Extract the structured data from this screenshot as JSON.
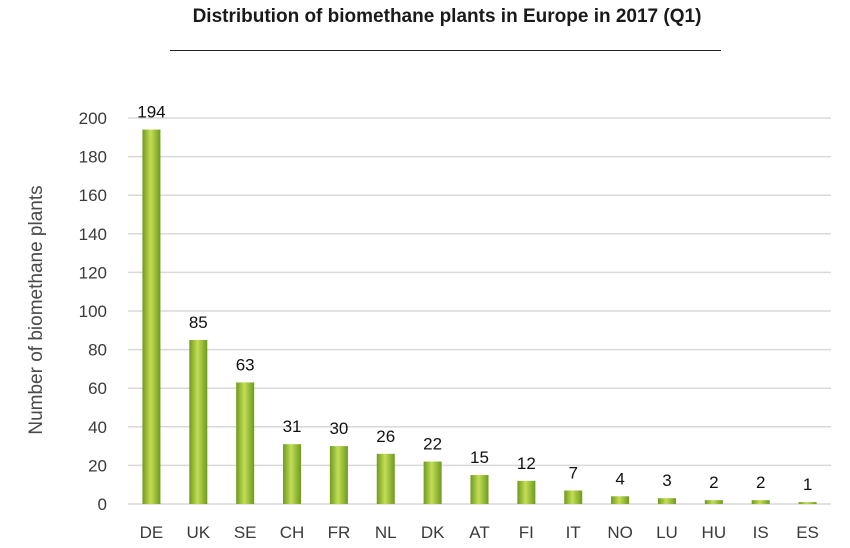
{
  "chart_data": {
    "type": "bar",
    "title": "Distribution of biomethane plants in Europe in 2017 (Q1)",
    "xlabel": "",
    "ylabel": "Number of biomethane plants",
    "categories": [
      "DE",
      "UK",
      "SE",
      "CH",
      "FR",
      "NL",
      "DK",
      "AT",
      "FI",
      "IT",
      "NO",
      "LU",
      "HU",
      "IS",
      "ES"
    ],
    "values": [
      194,
      85,
      63,
      31,
      30,
      26,
      22,
      15,
      12,
      7,
      4,
      3,
      2,
      2,
      1
    ],
    "ylim": [
      0,
      200
    ],
    "yticks": [
      0,
      20,
      40,
      60,
      80,
      100,
      120,
      140,
      160,
      180,
      200
    ],
    "grid": true,
    "legend": "none",
    "colors": {
      "bar_dark": "#6e9a1e",
      "bar_light": "#c3de55",
      "grid": "#d9d9d9"
    }
  }
}
